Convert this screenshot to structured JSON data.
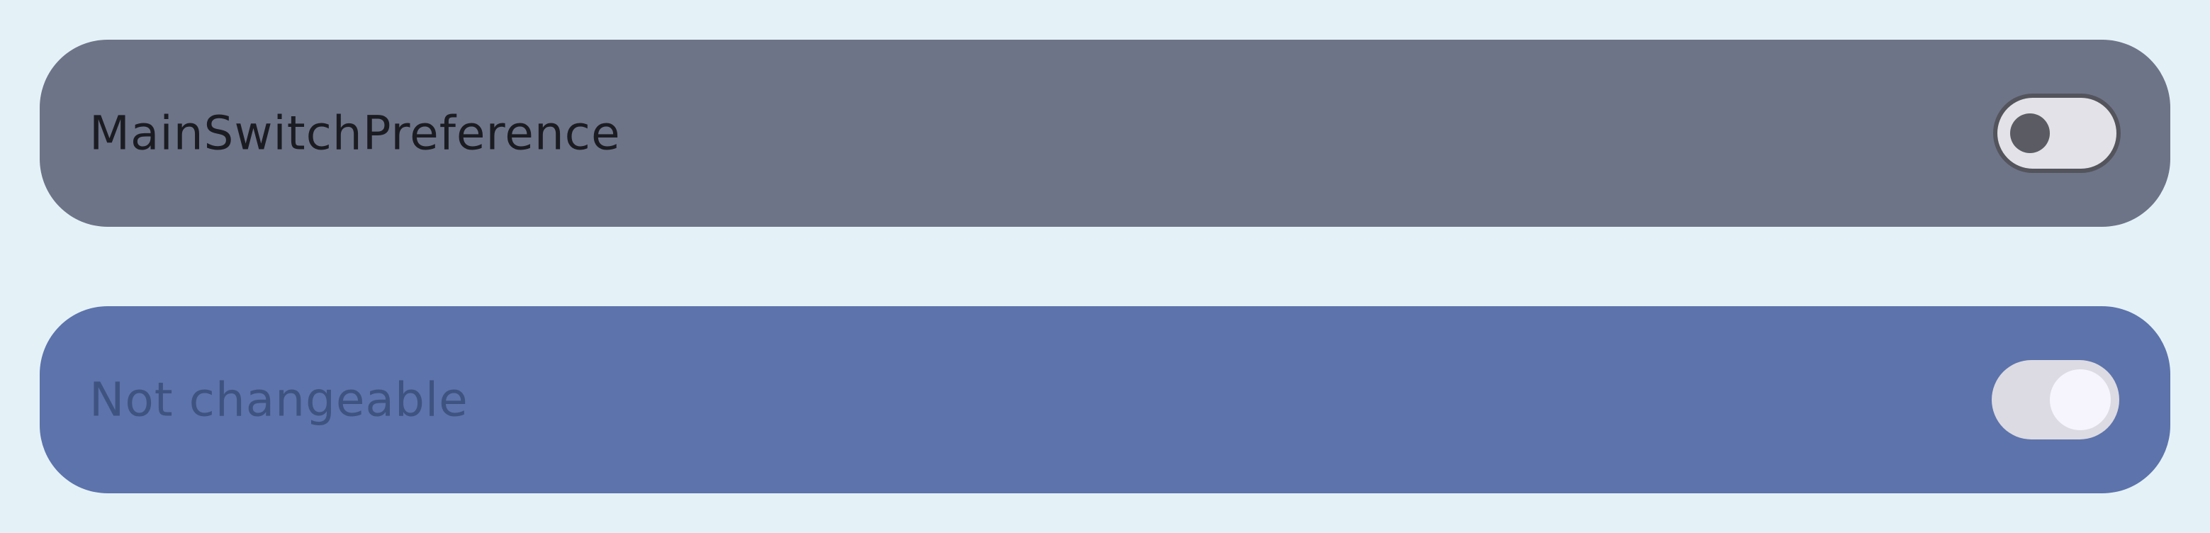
{
  "preferences": [
    {
      "label": "MainSwitchPreference",
      "enabled": true,
      "checked": false
    },
    {
      "label": "Not changeable",
      "enabled": false,
      "checked": true
    }
  ],
  "colors": {
    "page_background": "#e4f2f8",
    "main_bar": "#6e7488",
    "disabled_bar": "#5d73ab",
    "main_text": "#1b1c22",
    "disabled_text": "#3f5381",
    "switch_track_off": "#e2e2e8",
    "switch_thumb_off": "#5b5c63",
    "switch_track_disabled_on": "#dcdbe3",
    "switch_thumb_disabled_on": "#f6f4fc"
  }
}
